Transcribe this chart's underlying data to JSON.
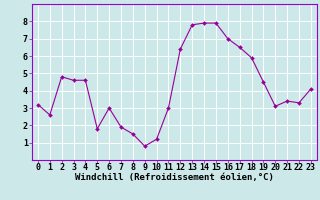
{
  "x": [
    0,
    1,
    2,
    3,
    4,
    5,
    6,
    7,
    8,
    9,
    10,
    11,
    12,
    13,
    14,
    15,
    16,
    17,
    18,
    19,
    20,
    21,
    22,
    23
  ],
  "y": [
    3.2,
    2.6,
    4.8,
    4.6,
    4.6,
    1.8,
    3.0,
    1.9,
    1.5,
    0.8,
    1.2,
    3.0,
    6.4,
    7.8,
    7.9,
    7.9,
    7.0,
    6.5,
    5.9,
    4.5,
    3.1,
    3.4,
    3.3,
    4.1
  ],
  "xlabel": "Windchill (Refroidissement éolien,°C)",
  "line_color": "#990099",
  "marker_color": "#990099",
  "bg_color": "#cce8e8",
  "grid_color": "#ffffff",
  "xlim": [
    -0.5,
    23.5
  ],
  "ylim": [
    0,
    9
  ],
  "xticks": [
    0,
    1,
    2,
    3,
    4,
    5,
    6,
    7,
    8,
    9,
    10,
    11,
    12,
    13,
    14,
    15,
    16,
    17,
    18,
    19,
    20,
    21,
    22,
    23
  ],
  "yticks": [
    1,
    2,
    3,
    4,
    5,
    6,
    7,
    8
  ],
  "xlabel_fontsize": 6.5,
  "tick_fontsize": 6.0,
  "spine_color": "#9900cc"
}
